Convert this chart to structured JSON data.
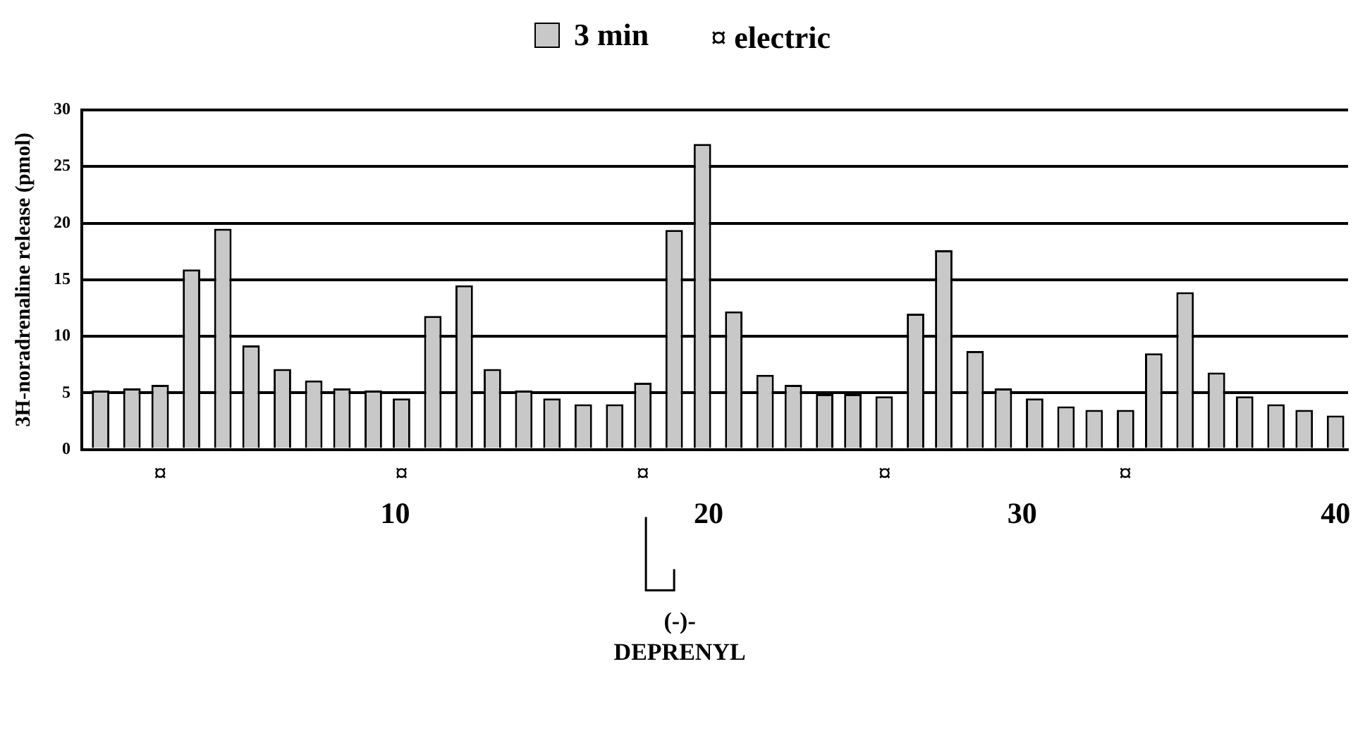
{
  "chart_data": {
    "type": "bar",
    "ylabel": "3H-noradrenaline release (pmol)",
    "x": [
      0.6,
      1.6,
      2.5,
      3.5,
      4.5,
      5.4,
      6.4,
      7.4,
      8.3,
      9.3,
      10.2,
      11.2,
      12.2,
      13.1,
      14.1,
      15.0,
      16.0,
      17.0,
      17.9,
      18.9,
      19.8,
      20.8,
      21.8,
      22.7,
      23.7,
      24.6,
      25.6,
      26.6,
      27.5,
      28.5,
      29.4,
      30.4,
      31.4,
      32.3,
      33.3,
      34.2,
      35.2,
      36.2,
      37.1,
      38.1,
      39.0,
      40.0
    ],
    "series": [
      {
        "name": "3 min",
        "color": "#c8c8c8",
        "values": [
          5.2,
          5.4,
          5.7,
          15.9,
          19.5,
          9.2,
          7.1,
          6.1,
          5.4,
          5.2,
          4.5,
          11.8,
          14.5,
          7.1,
          5.2,
          4.5,
          4.0,
          4.0,
          5.9,
          19.4,
          27.0,
          12.2,
          6.6,
          5.7,
          4.9,
          4.9,
          4.7,
          12.0,
          17.6,
          8.7,
          5.4,
          4.5,
          3.8,
          3.5,
          3.5,
          8.5,
          13.9,
          6.8,
          4.7,
          4.0,
          3.5,
          3.0
        ]
      }
    ],
    "xlim": [
      0,
      40.4
    ],
    "xticks": [
      10,
      20,
      30,
      40
    ],
    "ylim": [
      0,
      30
    ],
    "yticks": [
      0,
      5,
      10,
      15,
      20,
      25,
      30
    ],
    "grid": "y",
    "legend": "top",
    "annotations": [
      "¤ electric",
      "¤",
      "¤",
      "¤",
      "¤",
      "¤",
      "(-)-\nDEPRENYL"
    ]
  }
}
